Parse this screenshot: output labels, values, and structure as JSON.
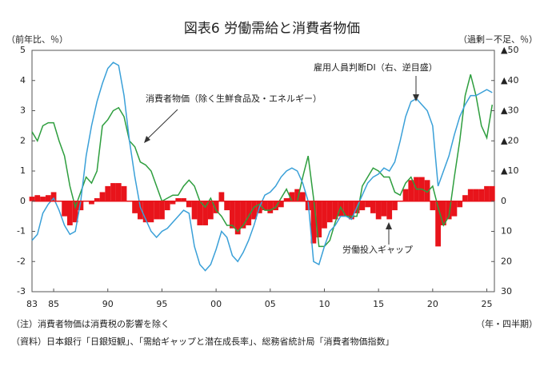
{
  "chart_data": {
    "type": "line",
    "title": "図表6 労働需給と消費者物価",
    "y_label": "（前年比、％）",
    "y2_label": "（過剰－不足、％）",
    "x_label": "（年・四半期）",
    "note": "（注）消費者物価は消費税の影響を除く",
    "source": "（資料）日本銀行「日銀短観」、「需給ギャップと潜在成長率」、総務省統計局「消費者物価指数」",
    "xlim": [
      1983,
      2025.7
    ],
    "xticks": [
      {
        "value": 1983,
        "label": "83"
      },
      {
        "value": 1985,
        "label": "85"
      },
      {
        "value": 1990,
        "label": "90"
      },
      {
        "value": 1995,
        "label": "95"
      },
      {
        "value": 2000,
        "label": "00"
      },
      {
        "value": 2005,
        "label": "05"
      },
      {
        "value": 2010,
        "label": "10"
      },
      {
        "value": 2015,
        "label": "15"
      },
      {
        "value": 2020,
        "label": "20"
      },
      {
        "value": 2025,
        "label": "25"
      }
    ],
    "ylim": [
      -3,
      5
    ],
    "yticks": [
      -3,
      -2,
      -1,
      0,
      1,
      2,
      3,
      4,
      5
    ],
    "y2lim": [
      30,
      -50
    ],
    "y2ticks": [
      {
        "value": -50,
        "label": "▲50"
      },
      {
        "value": -40,
        "label": "▲40"
      },
      {
        "value": -30,
        "label": "▲30"
      },
      {
        "value": -20,
        "label": "▲20"
      },
      {
        "value": -10,
        "label": "▲10"
      },
      0,
      10,
      20,
      30
    ],
    "grid": false,
    "x": [
      1983,
      1983.5,
      1984,
      1984.5,
      1985,
      1985.5,
      1986,
      1986.5,
      1987,
      1987.5,
      1988,
      1988.5,
      1989,
      1989.5,
      1990,
      1990.5,
      1991,
      1991.5,
      1992,
      1992.5,
      1993,
      1993.5,
      1994,
      1994.5,
      1995,
      1995.5,
      1996,
      1996.5,
      1997,
      1997.5,
      1998,
      1998.5,
      1999,
      1999.5,
      2000,
      2000.5,
      2001,
      2001.5,
      2002,
      2002.5,
      2003,
      2003.5,
      2004,
      2004.5,
      2005,
      2005.5,
      2006,
      2006.5,
      2007,
      2007.5,
      2008,
      2008.5,
      2009,
      2009.5,
      2010,
      2010.5,
      2011,
      2011.5,
      2012,
      2012.5,
      2013,
      2013.5,
      2014,
      2014.5,
      2015,
      2015.5,
      2016,
      2016.5,
      2017,
      2017.5,
      2018,
      2018.5,
      2019,
      2019.5,
      2020,
      2020.5,
      2021,
      2021.5,
      2022,
      2022.5,
      2023,
      2023.5,
      2024,
      2024.5,
      2025,
      2025.5
    ],
    "series": [
      {
        "name": "労働投入ギャップ",
        "type": "bar",
        "color": "#e8141b",
        "values": [
          0.15,
          0.2,
          0.15,
          0.2,
          0.3,
          0.0,
          -0.5,
          -0.8,
          -0.7,
          -0.3,
          0.0,
          -0.1,
          0.1,
          0.3,
          0.5,
          0.6,
          0.6,
          0.5,
          0.0,
          -0.4,
          -0.6,
          -0.7,
          -0.7,
          -0.6,
          -0.6,
          -0.3,
          -0.1,
          0.1,
          0.1,
          -0.2,
          -0.6,
          -0.8,
          -0.8,
          -0.6,
          -0.4,
          0.3,
          -0.3,
          -0.9,
          -1.1,
          -0.9,
          -0.8,
          -0.6,
          -0.4,
          -0.3,
          -0.4,
          -0.3,
          -0.2,
          0.1,
          0.3,
          0.4,
          0.3,
          -0.3,
          -1.4,
          -1.2,
          -0.9,
          -0.7,
          -0.6,
          -0.5,
          -0.5,
          -0.6,
          -0.4,
          -0.3,
          -0.2,
          -0.4,
          -0.6,
          -0.5,
          -0.6,
          -0.3,
          0.0,
          0.4,
          0.7,
          0.8,
          0.8,
          0.7,
          -0.3,
          -1.5,
          -0.8,
          -0.6,
          -0.5,
          -0.2,
          0.2,
          0.4,
          0.4,
          0.4,
          0.5,
          0.5
        ]
      },
      {
        "name": "消費者物価（除く生鮮食品及・エネルギー）",
        "type": "line",
        "color": "#2e9e3e",
        "values": [
          2.3,
          2.0,
          2.5,
          2.6,
          2.6,
          2.0,
          1.5,
          0.5,
          -0.2,
          0.3,
          0.8,
          0.6,
          1.0,
          2.5,
          2.7,
          3.0,
          3.1,
          2.8,
          2.0,
          1.8,
          1.3,
          1.2,
          1.0,
          0.5,
          0.0,
          0.1,
          0.2,
          0.2,
          0.5,
          0.7,
          0.5,
          0.0,
          -0.2,
          0.1,
          -0.3,
          -0.5,
          -0.8,
          -0.8,
          -1.0,
          -0.8,
          -0.5,
          -0.2,
          -0.1,
          -0.3,
          -0.3,
          -0.2,
          0.1,
          0.4,
          0.0,
          0.0,
          0.8,
          1.5,
          0.1,
          -1.5,
          -1.5,
          -1.3,
          -0.7,
          -0.2,
          -0.5,
          -0.5,
          -0.5,
          0.5,
          0.8,
          1.1,
          1.0,
          0.8,
          0.8,
          0.3,
          0.2,
          0.6,
          0.8,
          0.4,
          0.4,
          0.3,
          0.5,
          -0.2,
          -0.8,
          -0.5,
          0.8,
          2.0,
          3.5,
          4.2,
          3.5,
          2.5,
          2.1,
          3.2
        ]
      },
      {
        "name": "雇用人員判断DI（右、逆目盛）",
        "type": "line",
        "axis": "y2",
        "color": "#3aa0d8",
        "values": [
          13,
          11,
          4,
          1,
          -1,
          3,
          8,
          11,
          10,
          0,
          -15,
          -25,
          -33,
          -39,
          -44,
          -46,
          -45,
          -35,
          -20,
          -8,
          2,
          6,
          10,
          12,
          10,
          9,
          7,
          5,
          3,
          4,
          15,
          21,
          23,
          21,
          16,
          10,
          12,
          18,
          20,
          17,
          13,
          8,
          2,
          -2,
          -3,
          -5,
          -8,
          -10,
          -11,
          -10,
          -6,
          0,
          20,
          21,
          15,
          10,
          8,
          5,
          5,
          6,
          2,
          -2,
          -6,
          -8,
          -9,
          -11,
          -10,
          -13,
          -20,
          -28,
          -33,
          -34,
          -32,
          -30,
          -25,
          -5,
          -10,
          -15,
          -22,
          -28,
          -32,
          -35,
          -35,
          -36,
          -37,
          -36
        ]
      }
    ]
  }
}
